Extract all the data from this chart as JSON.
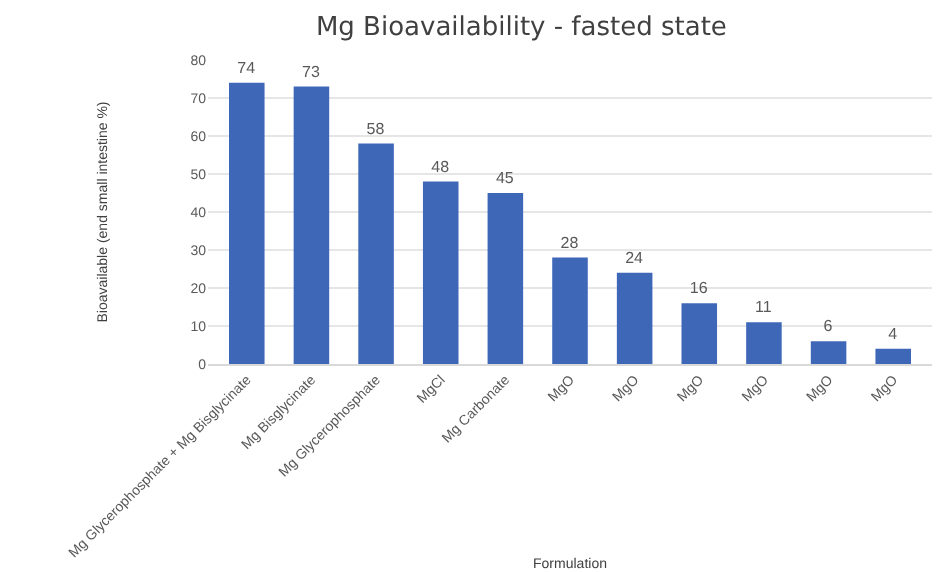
{
  "chart_data": {
    "type": "bar",
    "title": "Mg Bioavailability - fasted state",
    "xlabel": "Formulation",
    "ylabel": "Bioavailable (end small intestine %)",
    "categories": [
      "Mg Glycerophosphate + Mg Bisglycinate",
      "Mg Bisglycinate",
      "Mg Glycerophosphate",
      "MgCl",
      "Mg Carbonate",
      "MgO",
      "MgO",
      "MgO",
      "MgO",
      "MgO",
      "MgO"
    ],
    "values": [
      74,
      73,
      58,
      48,
      45,
      28,
      24,
      16,
      11,
      6,
      4
    ],
    "color": "#3f67b8",
    "ylim": [
      0,
      80
    ],
    "yticks": [
      0,
      10,
      20,
      30,
      40,
      50,
      60,
      70,
      80
    ],
    "grid": "y",
    "data_labels": true
  }
}
